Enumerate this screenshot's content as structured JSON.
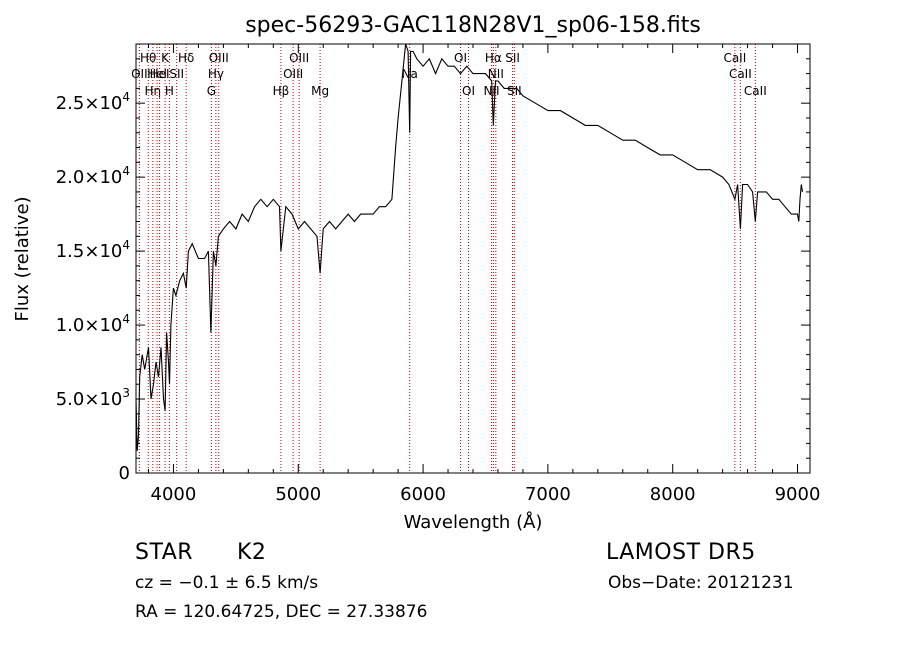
{
  "chart_data": {
    "type": "line",
    "title": "spec-56293-GAC118N28V1_sp06-158.fits",
    "xlabel": "Wavelength (Å)",
    "ylabel": "Flux (relative)",
    "xlim": [
      3700,
      9100
    ],
    "ylim": [
      0,
      29000
    ],
    "x_ticks": [
      4000,
      5000,
      6000,
      7000,
      8000,
      9000
    ],
    "x_tick_labels": [
      "4000",
      "5000",
      "6000",
      "7000",
      "8000",
      "9000"
    ],
    "y_ticks": [
      {
        "value": 0,
        "mant": "0",
        "exp": ""
      },
      {
        "value": 5000,
        "mant": "5.0×10",
        "exp": "3"
      },
      {
        "value": 10000,
        "mant": "1.0×10",
        "exp": "4"
      },
      {
        "value": 15000,
        "mant": "1.5×10",
        "exp": "4"
      },
      {
        "value": 20000,
        "mant": "2.0×10",
        "exp": "4"
      },
      {
        "value": 25000,
        "mant": "2.5×10",
        "exp": "4"
      }
    ],
    "grid": false,
    "series": [
      {
        "x": [
          3700,
          3710,
          3720,
          3730,
          3750,
          3770,
          3800,
          3820,
          3840,
          3860,
          3880,
          3900,
          3920,
          3933,
          3945,
          3960,
          3968,
          3980,
          4000,
          4020,
          4050,
          4080,
          4102,
          4120,
          4150,
          4200,
          4250,
          4280,
          4300,
          4320,
          4340,
          4360,
          4400,
          4450,
          4500,
          4550,
          4600,
          4650,
          4700,
          4750,
          4800,
          4850,
          4861,
          4900,
          4950,
          5000,
          5050,
          5100,
          5150,
          5175,
          5200,
          5250,
          5300,
          5350,
          5400,
          5450,
          5500,
          5550,
          5600,
          5650,
          5700,
          5750,
          5780,
          5800,
          5830,
          5860,
          5880,
          5893,
          5900,
          5920,
          5950,
          6000,
          6050,
          6100,
          6150,
          6200,
          6250,
          6300,
          6350,
          6400,
          6450,
          6500,
          6550,
          6563,
          6580,
          6600,
          6650,
          6700,
          6750,
          6800,
          6900,
          7000,
          7100,
          7200,
          7300,
          7400,
          7500,
          7600,
          7700,
          7800,
          7900,
          8000,
          8100,
          8200,
          8300,
          8400,
          8450,
          8498,
          8520,
          8542,
          8560,
          8600,
          8640,
          8662,
          8680,
          8700,
          8750,
          8800,
          8850,
          8900,
          8950,
          9000,
          9010,
          9020,
          9030,
          9040
        ],
        "y": [
          5000,
          1500,
          2500,
          6500,
          8000,
          7000,
          8500,
          5000,
          6000,
          7500,
          6500,
          8500,
          5000,
          4200,
          9500,
          7500,
          6000,
          10000,
          12500,
          12000,
          13000,
          13500,
          12500,
          15000,
          15500,
          14500,
          14500,
          15000,
          9500,
          15000,
          14000,
          16000,
          16500,
          17000,
          16500,
          17500,
          17000,
          18000,
          18500,
          18000,
          18500,
          18000,
          15000,
          18000,
          17500,
          16500,
          17000,
          16500,
          16000,
          13500,
          16500,
          17000,
          16500,
          17000,
          17500,
          17000,
          17500,
          17500,
          17500,
          18000,
          18000,
          18500,
          22000,
          24000,
          26500,
          29000,
          28500,
          23000,
          28500,
          28500,
          28000,
          27500,
          28000,
          27000,
          28000,
          27500,
          27500,
          27000,
          27500,
          27000,
          27000,
          27000,
          26500,
          23500,
          26500,
          26500,
          26000,
          26000,
          26000,
          25500,
          25000,
          24500,
          24500,
          24000,
          23500,
          23500,
          23000,
          22500,
          22500,
          22000,
          21500,
          21500,
          21000,
          20500,
          20500,
          20000,
          19500,
          18500,
          19500,
          16500,
          19500,
          19500,
          19000,
          17000,
          19000,
          19000,
          19000,
          18500,
          18500,
          18000,
          17500,
          17500,
          17000,
          18500,
          19500,
          19000
        ]
      }
    ],
    "lines": [
      {
        "wl": 3727,
        "label": "OII",
        "row": 2
      },
      {
        "wl": 3798,
        "label": "Hθ",
        "row": 1
      },
      {
        "wl": 3835,
        "label": "Hη",
        "row": 3
      },
      {
        "wl": 3869,
        "label": "HeI",
        "row": 2
      },
      {
        "wl": 3889,
        "label": "HeI",
        "row": 2
      },
      {
        "wl": 3933,
        "label": "K",
        "row": 1
      },
      {
        "wl": 3968,
        "label": "H",
        "row": 3
      },
      {
        "wl": 4026,
        "label": "SII",
        "row": 2
      },
      {
        "wl": 4102,
        "label": "Hδ",
        "row": 1
      },
      {
        "wl": 4304,
        "label": "G",
        "row": 3
      },
      {
        "wl": 4340,
        "label": "Hγ",
        "row": 2
      },
      {
        "wl": 4363,
        "label": "OIII",
        "row": 1
      },
      {
        "wl": 4861,
        "label": "Hβ",
        "row": 3
      },
      {
        "wl": 4959,
        "label": "OIII",
        "row": 2
      },
      {
        "wl": 5007,
        "label": "OIII",
        "row": 1
      },
      {
        "wl": 5175,
        "label": "Mg",
        "row": 3
      },
      {
        "wl": 5893,
        "label": "Na",
        "row": 2
      },
      {
        "wl": 6300,
        "label": "OI",
        "row": 1
      },
      {
        "wl": 6364,
        "label": "OI",
        "row": 3
      },
      {
        "wl": 6548,
        "label": "NII",
        "row": 3
      },
      {
        "wl": 6563,
        "label": "Hα",
        "row": 1
      },
      {
        "wl": 6583,
        "label": "NII",
        "row": 2
      },
      {
        "wl": 6717,
        "label": "SII",
        "row": 1
      },
      {
        "wl": 6731,
        "label": "SII",
        "row": 3
      },
      {
        "wl": 8498,
        "label": "CaII",
        "row": 1
      },
      {
        "wl": 8542,
        "label": "CaII",
        "row": 2
      },
      {
        "wl": 8662,
        "label": "CaII",
        "row": 3
      }
    ]
  },
  "info": {
    "class_label": "STAR",
    "subclass_label": "K2",
    "survey": "LAMOST DR5",
    "cz": "cz = −0.1 ± 6.5 km/s",
    "obs_date": "Obs−Date: 20121231",
    "radec": "RA = 120.64725, DEC =  27.33876"
  }
}
